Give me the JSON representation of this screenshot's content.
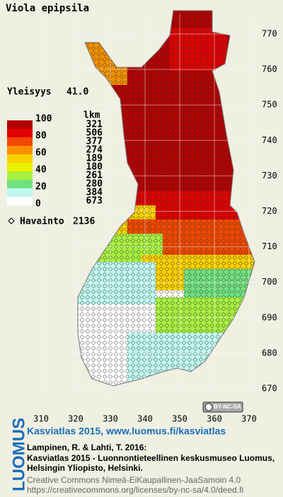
{
  "header": {
    "title": "Viola epipsila"
  },
  "frequency": {
    "label": "Yleisyys",
    "value": "41.0"
  },
  "legend": {
    "unit": "lkm",
    "scale_labels": [
      100,
      80,
      60,
      40,
      20,
      0
    ],
    "colors": [
      "#b40000",
      "#e00000",
      "#f04800",
      "#f89000",
      "#f8d000",
      "#e8f000",
      "#a8f040",
      "#70e080",
      "#c0f8f0",
      "#ffffff"
    ],
    "counts": [
      321,
      506,
      377,
      274,
      189,
      180,
      261,
      280,
      384,
      673
    ]
  },
  "observations": {
    "label": "Havainto",
    "count": 2136
  },
  "map": {
    "xticks": [
      310,
      320,
      330,
      340,
      350,
      360,
      370
    ],
    "yticks": [
      670,
      680,
      690,
      700,
      710,
      720,
      730,
      740,
      750,
      760,
      770
    ]
  },
  "license_badge": "BY-NC-SA",
  "footer": {
    "brand": "LUOMUS",
    "link": "Kasviatlas 2015, www.luomus.fi/kasviatlas",
    "citation_authors": "Lampinen, R. & Lahti, T. 2016:",
    "citation_line1": "Kasviatlas 2015 - Luonnontieteellinen keskusmuseo Luomus,",
    "citation_line2": "Helsingin Yliopisto, Helsinki.",
    "license_name": "Creative Commons Nimeä-EiKaupallinen-JaaSamoin 4.0",
    "license_url": "https://creativecommons.org/licenses/by-nc-sa/4.0/deed.fi"
  }
}
